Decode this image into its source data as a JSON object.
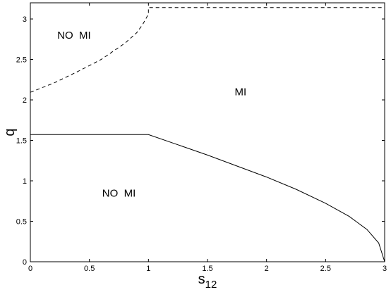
{
  "chart_data": {
    "type": "line",
    "title": "",
    "xlabel": "s",
    "xlabel_subscript": "12",
    "ylabel": "q",
    "xlim": [
      0,
      3
    ],
    "ylim": [
      0,
      3.2
    ],
    "xticks": [
      0,
      0.5,
      1,
      1.5,
      2,
      2.5,
      3
    ],
    "xtick_labels": [
      "0",
      "0.5",
      "1",
      "1.5",
      "2",
      "2.5",
      "3"
    ],
    "yticks": [
      0,
      0.5,
      1,
      1.5,
      2,
      2.5,
      3
    ],
    "ytick_labels": [
      "0",
      "0.5",
      "1",
      "1.5",
      "2",
      "2.5",
      "3"
    ],
    "grid": false,
    "series": [
      {
        "style": "solid",
        "color": "#000000",
        "x": [
          0,
          1,
          1.25,
          1.5,
          1.75,
          2,
          2.25,
          2.5,
          2.7,
          2.85,
          2.95,
          3
        ],
        "y": [
          1.571,
          1.571,
          1.445,
          1.318,
          1.183,
          1.047,
          0.896,
          0.723,
          0.56,
          0.399,
          0.231,
          0.0
        ]
      },
      {
        "style": "dashed",
        "color": "#000000",
        "x": [
          0,
          0.2,
          0.4,
          0.6,
          0.8,
          0.9,
          0.95,
          1,
          1,
          3
        ],
        "y": [
          2.094,
          2.21,
          2.35,
          2.5,
          2.7,
          2.83,
          2.93,
          3.06,
          3.1416,
          3.1416
        ]
      }
    ],
    "annotations": [
      {
        "text": "NO  MI",
        "x": 0.37,
        "y": 2.8
      },
      {
        "text": "MI",
        "x": 1.78,
        "y": 2.1
      },
      {
        "text": "NO  MI",
        "x": 0.75,
        "y": 0.85
      }
    ]
  }
}
